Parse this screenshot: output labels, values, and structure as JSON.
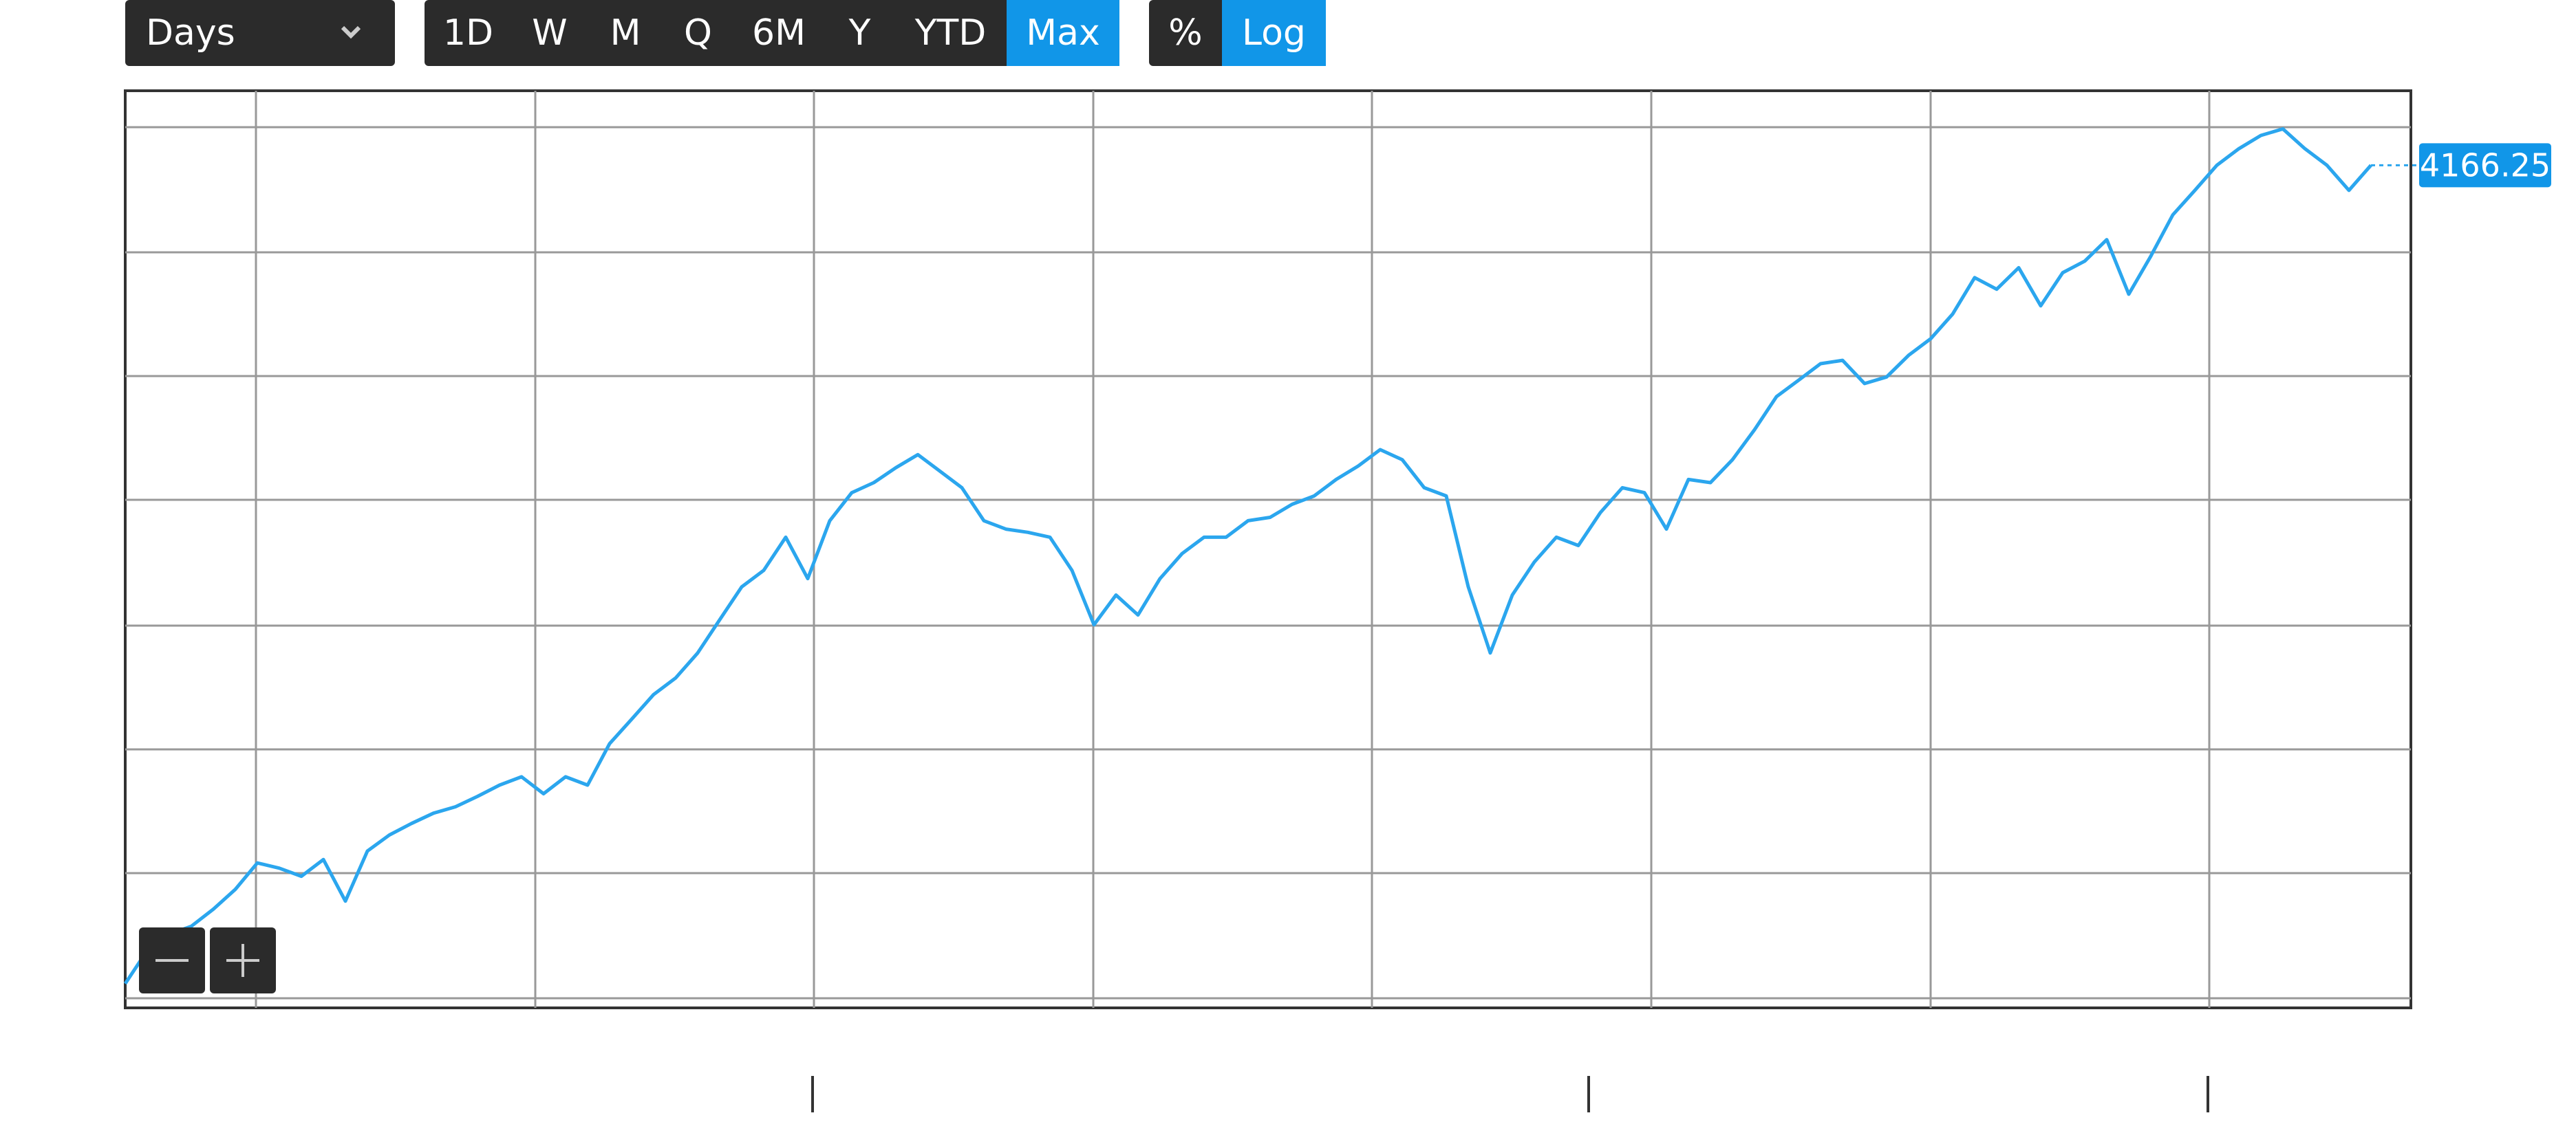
{
  "ui": {
    "period_select": "Days",
    "ranges": [
      "1D",
      "W",
      "M",
      "Q",
      "6M",
      "Y",
      "YTD",
      "Max"
    ],
    "active_range": "Max",
    "scale_buttons": [
      "%",
      "Log"
    ],
    "active_scale": "Log"
  },
  "chart_data": {
    "type": "line",
    "log_scale": true,
    "grid": true,
    "ylim": [
      180,
      5500
    ],
    "series": [
      {
        "color": "#2ba6ee",
        "values": [
          197,
          223,
          237,
          244,
          260,
          280,
          309,
          303,
          294,
          313,
          268,
          323,
          343,
          358,
          372,
          381,
          396,
          413,
          426,
          400,
          426,
          413,
          482,
          528,
          579,
          616,
          676,
          765,
          865,
          920,
          1041,
          892,
          1107,
          1229,
          1276,
          1349,
          1416,
          1332,
          1252,
          1107,
          1073,
          1060,
          1041,
          920,
          751,
          839,
          779,
          892,
          979,
          1041,
          1041,
          1107,
          1121,
          1177,
          1214,
          1291,
          1357,
          1443,
          1390,
          1252,
          1214,
          865,
          676,
          839,
          949,
          1041,
          1009,
          1141,
          1252,
          1229,
          1073,
          1291,
          1276,
          1390,
          1554,
          1758,
          1869,
          1988,
          2013,
          1846,
          1892,
          2051,
          2181,
          2392,
          2740,
          2624,
          2843,
          2467,
          2791,
          2914,
          3157,
          2576,
          2968,
          3463,
          3794,
          4166,
          4431,
          4656,
          4771,
          4431,
          4166,
          3794,
          4166.25
        ]
      }
    ]
  }
}
